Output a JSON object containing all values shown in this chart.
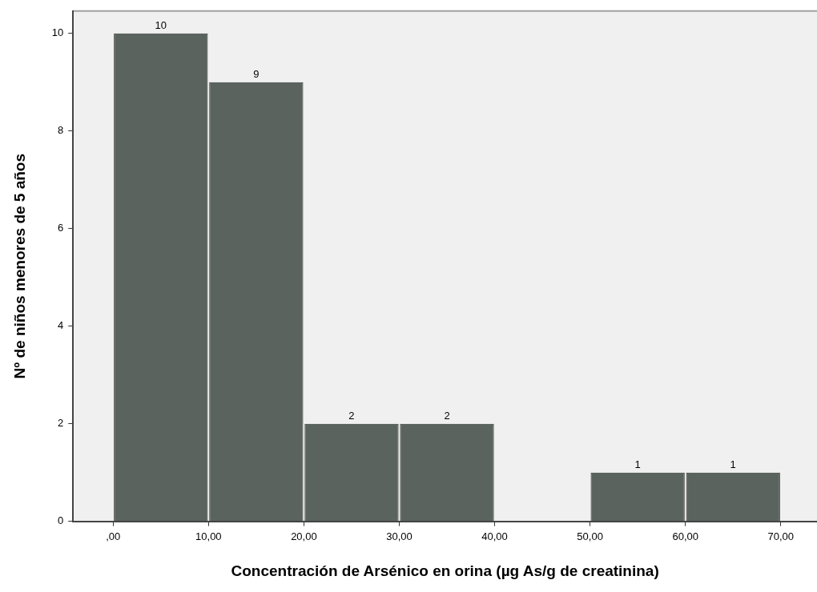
{
  "chart_data": {
    "type": "histogram",
    "xlabel": "Concentración de Arsénico en orina (µg As/g de creatinina)",
    "ylabel": "Nº de niños menores de 5 años",
    "bins": [
      0,
      10,
      20,
      30,
      40,
      50,
      60,
      70
    ],
    "values": [
      10,
      9,
      2,
      2,
      0,
      1,
      1
    ],
    "color": "#5a635d",
    "value_labels": [
      "10",
      "9",
      "2",
      "2",
      null,
      "1",
      "1"
    ],
    "xlim": [
      -4.2,
      73.8
    ],
    "xticks": [
      {
        "value": 0,
        "label": ",00"
      },
      {
        "value": 10,
        "label": "10,00"
      },
      {
        "value": 20,
        "label": "20,00"
      },
      {
        "value": 30,
        "label": "30,00"
      },
      {
        "value": 40,
        "label": "40,00"
      },
      {
        "value": 50,
        "label": "50,00"
      },
      {
        "value": 60,
        "label": "60,00"
      },
      {
        "value": 70,
        "label": "70,00"
      }
    ],
    "ylim": [
      0,
      10.46
    ],
    "yticks": [
      0,
      2,
      4,
      6,
      8,
      10
    ],
    "grid": false,
    "legend": false
  }
}
